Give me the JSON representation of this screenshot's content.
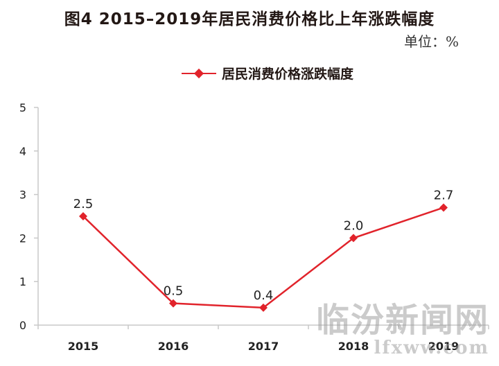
{
  "page": {
    "title": "图4 2015–2019年居民消费价格比上年涨跌幅度",
    "unit": "单位：%",
    "watermark_main": "临汾新闻网",
    "watermark_sub": "lfxww.com"
  },
  "colors": {
    "series": "#e1232b",
    "axis": "#c8c8c8",
    "text": "#231815"
  },
  "chart_data": {
    "type": "line",
    "x": [
      "2015",
      "2016",
      "2017",
      "2018",
      "2019"
    ],
    "series": [
      {
        "name": "居民消费价格涨跌幅度",
        "values": [
          2.5,
          0.5,
          0.4,
          2.0,
          2.7
        ],
        "labels": [
          "2.5",
          "0.5",
          "0.4",
          "2.0",
          "2.7"
        ]
      }
    ],
    "ylim": [
      0,
      5
    ],
    "yticks": [
      "0",
      "1",
      "2",
      "3",
      "4",
      "5"
    ],
    "grid": false,
    "legend": "top-center",
    "marker": "diamond"
  }
}
